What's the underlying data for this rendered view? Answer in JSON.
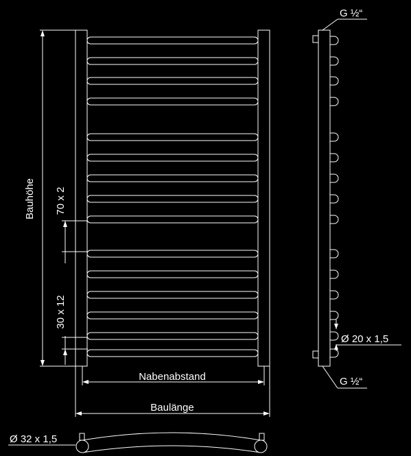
{
  "labels": {
    "height": "Bauhöhe",
    "spacing_top": "70 x 2",
    "spacing_bottom": "30 x 12",
    "hub_distance": "Nabenabstand",
    "length": "Baulänge",
    "connection_top": "G ½“",
    "connection_bottom": "G ½“",
    "bar_tube": "Ø 20 x 1,5",
    "collector_tube": "Ø 32 x 1,5"
  },
  "colors": {
    "background": "#000000",
    "lines": "#ffffff"
  }
}
